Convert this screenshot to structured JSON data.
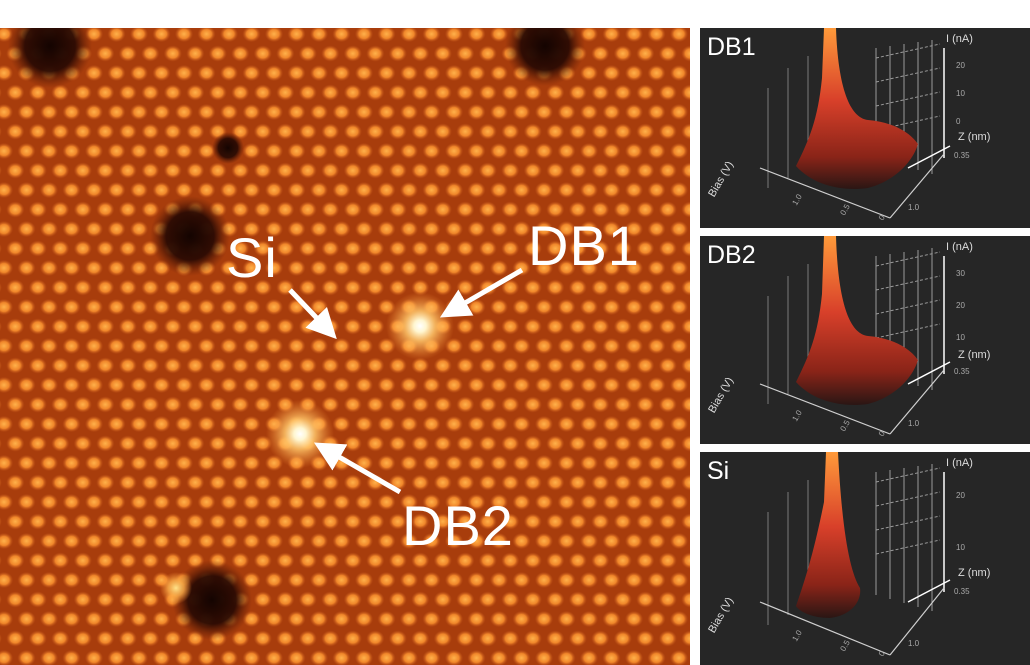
{
  "stm_image": {
    "labels": {
      "si": "Si",
      "db1": "DB1",
      "db2": "DB2"
    },
    "colors": {
      "background": "#a83d0c",
      "atom": "#f5902a",
      "bright_center": "#fffbe6",
      "defect": "#1a0602"
    }
  },
  "spectra": [
    {
      "title": "DB1",
      "current_axis": "I (nA)",
      "distance_axis": "Z (nm)",
      "bias_axis": "Bias (V)",
      "current_ticks": [
        "20",
        "10",
        "0"
      ],
      "distance_ticks": [
        "0.35",
        "1.0"
      ],
      "bias_ticks": [
        "1.0",
        "0.5",
        "0"
      ]
    },
    {
      "title": "DB2",
      "current_axis": "I (nA)",
      "distance_axis": "Z (nm)",
      "bias_axis": "Bias (V)",
      "current_ticks": [
        "30",
        "20",
        "10"
      ],
      "distance_ticks": [
        "0.35",
        "1.0"
      ],
      "bias_ticks": [
        "1.0",
        "0.5",
        "0"
      ]
    },
    {
      "title": "Si",
      "current_axis": "I (nA)",
      "distance_axis": "Z (nm)",
      "bias_axis": "Bias (V)",
      "current_ticks": [
        "20",
        "10"
      ],
      "distance_ticks": [
        "0.35",
        "1.0"
      ],
      "bias_ticks": [
        "1.0",
        "0.5",
        "0"
      ]
    }
  ]
}
